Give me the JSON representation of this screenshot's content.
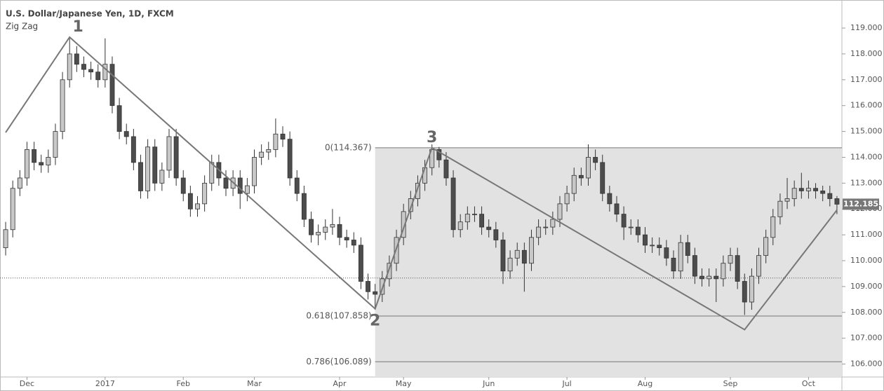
{
  "chart_data": {
    "type": "candlestick",
    "title": "U.S. Dollar/Japanese Yen, 1D, FXCM",
    "subtitle": "Zig Zag",
    "categories": [
      null,
      null,
      null,
      "Dec",
      null,
      null,
      null,
      null,
      null,
      null,
      null,
      null,
      null,
      null,
      "2017",
      null,
      null,
      null,
      null,
      null,
      null,
      null,
      null,
      null,
      null,
      "Feb",
      null,
      null,
      null,
      null,
      null,
      null,
      null,
      null,
      null,
      "Mar",
      null,
      null,
      null,
      null,
      null,
      null,
      null,
      null,
      null,
      null,
      null,
      "Apr",
      null,
      null,
      null,
      null,
      null,
      null,
      null,
      null,
      "May",
      null,
      null,
      null,
      null,
      null,
      null,
      null,
      null,
      null,
      null,
      null,
      "Jun",
      null,
      null,
      null,
      null,
      null,
      null,
      null,
      null,
      null,
      null,
      "Jul",
      null,
      null,
      null,
      null,
      null,
      null,
      null,
      null,
      null,
      null,
      "Aug",
      null,
      null,
      null,
      null,
      null,
      null,
      null,
      null,
      null,
      null,
      null,
      "Sep",
      null,
      null,
      null,
      null,
      null,
      null,
      null,
      null,
      null,
      null,
      "Oct",
      null,
      null,
      null,
      null
    ],
    "open": [
      110.5,
      111.2,
      112.8,
      113.2,
      114.3,
      113.8,
      113.7,
      114.0,
      115.0,
      117.0,
      118.0,
      117.6,
      117.4,
      117.3,
      117.0,
      117.6,
      116.0,
      115.0,
      114.8,
      113.8,
      112.7,
      114.4,
      113.0,
      113.5,
      114.8,
      113.2,
      112.6,
      112.0,
      112.2,
      113.0,
      113.8,
      113.2,
      112.8,
      113.2,
      112.6,
      112.9,
      114.0,
      114.2,
      114.3,
      114.9,
      114.7,
      113.2,
      112.6,
      111.6,
      111.0,
      111.1,
      111.3,
      111.4,
      110.9,
      110.8,
      110.6,
      109.2,
      108.8,
      108.7,
      109.3,
      109.9,
      110.9,
      111.9,
      112.4,
      113.0,
      113.6,
      114.3,
      113.9,
      113.2,
      111.2,
      111.5,
      111.8,
      111.8,
      111.3,
      111.2,
      110.8,
      109.6,
      110.1,
      110.4,
      109.9,
      110.9,
      111.3,
      111.3,
      111.6,
      112.2,
      112.6,
      113.3,
      113.2,
      114.0,
      113.8,
      112.6,
      112.2,
      111.8,
      111.3,
      111.3,
      111.0,
      110.6,
      110.6,
      110.5,
      110.1,
      109.6,
      110.7,
      110.2,
      109.4,
      109.3,
      109.4,
      109.3,
      109.9,
      110.2,
      109.2,
      108.4,
      109.4,
      110.2,
      110.9,
      111.7,
      112.3,
      112.4,
      112.8,
      112.7,
      112.8,
      112.7,
      112.6,
      112.4
    ],
    "high": [
      111.5,
      113.1,
      113.5,
      114.6,
      114.6,
      114.1,
      114.3,
      115.3,
      117.3,
      118.6,
      118.3,
      117.9,
      117.7,
      117.6,
      118.6,
      117.9,
      116.3,
      115.3,
      115.1,
      114.1,
      114.7,
      114.7,
      113.8,
      115.1,
      115.1,
      113.5,
      112.9,
      112.5,
      113.3,
      114.1,
      114.1,
      113.5,
      113.5,
      113.5,
      113.2,
      114.3,
      114.5,
      114.6,
      115.5,
      115.2,
      115.0,
      113.5,
      112.9,
      111.9,
      111.4,
      111.6,
      112.0,
      111.7,
      111.2,
      111.1,
      110.9,
      109.5,
      109.1,
      109.6,
      110.2,
      111.2,
      112.2,
      112.7,
      113.3,
      113.9,
      114.5,
      114.4,
      114.2,
      113.5,
      111.8,
      112.1,
      112.1,
      112.1,
      111.6,
      111.5,
      111.1,
      110.4,
      110.7,
      110.7,
      111.2,
      111.6,
      111.6,
      111.9,
      112.5,
      112.9,
      113.6,
      113.6,
      114.5,
      114.3,
      114.1,
      112.9,
      112.5,
      112.1,
      111.6,
      111.6,
      111.3,
      110.9,
      110.9,
      110.8,
      110.4,
      111.0,
      111.0,
      110.5,
      109.7,
      109.7,
      109.7,
      110.2,
      110.5,
      110.5,
      109.5,
      109.7,
      110.5,
      111.2,
      112.0,
      112.6,
      113.2,
      113.1,
      113.4,
      113.1,
      113.0,
      112.9,
      112.9,
      112.5
    ],
    "low": [
      110.2,
      110.9,
      112.5,
      112.9,
      113.5,
      113.4,
      113.4,
      113.7,
      114.7,
      116.7,
      117.3,
      117.1,
      117.0,
      116.7,
      116.7,
      115.7,
      114.7,
      114.5,
      113.5,
      112.4,
      112.4,
      112.7,
      112.7,
      113.2,
      112.9,
      112.3,
      111.7,
      111.7,
      111.9,
      112.7,
      112.9,
      112.5,
      112.5,
      112.0,
      112.3,
      112.6,
      113.7,
      113.9,
      114.0,
      114.4,
      112.9,
      112.3,
      111.3,
      110.7,
      110.6,
      110.8,
      111.0,
      110.6,
      110.5,
      110.3,
      108.9,
      108.5,
      108.1,
      108.4,
      109.0,
      109.6,
      110.6,
      111.6,
      112.1,
      112.7,
      113.3,
      113.6,
      112.9,
      110.9,
      110.9,
      111.2,
      111.5,
      111.0,
      110.9,
      110.5,
      109.1,
      109.3,
      109.8,
      108.8,
      109.6,
      110.6,
      111.0,
      111.0,
      111.3,
      111.9,
      112.3,
      112.9,
      112.9,
      113.5,
      112.3,
      111.9,
      111.5,
      110.8,
      111.0,
      110.7,
      110.3,
      110.3,
      110.2,
      109.8,
      109.3,
      109.3,
      109.9,
      109.1,
      109.0,
      109.0,
      108.4,
      109.0,
      109.6,
      108.9,
      107.9,
      108.1,
      109.1,
      109.9,
      110.6,
      111.4,
      112.0,
      112.1,
      112.4,
      112.4,
      112.4,
      112.3,
      112.1,
      111.8
    ],
    "close": [
      111.2,
      112.8,
      113.2,
      114.3,
      113.8,
      113.7,
      114.0,
      115.0,
      117.0,
      118.0,
      117.6,
      117.4,
      117.3,
      117.0,
      117.6,
      116.0,
      115.0,
      114.8,
      113.8,
      112.7,
      114.4,
      113.0,
      113.5,
      114.8,
      113.2,
      112.6,
      112.0,
      112.2,
      113.0,
      113.8,
      113.2,
      112.8,
      113.2,
      112.6,
      112.9,
      114.0,
      114.2,
      114.3,
      114.9,
      114.7,
      113.2,
      112.6,
      111.6,
      111.0,
      111.1,
      111.3,
      111.4,
      110.9,
      110.8,
      110.6,
      109.2,
      108.8,
      108.7,
      109.3,
      109.9,
      110.9,
      111.9,
      112.4,
      113.0,
      113.6,
      114.3,
      113.9,
      113.2,
      111.2,
      111.5,
      111.8,
      111.8,
      111.3,
      111.2,
      110.8,
      109.6,
      110.1,
      110.4,
      109.9,
      110.9,
      111.3,
      111.3,
      111.6,
      112.2,
      112.6,
      113.3,
      113.2,
      114.0,
      113.8,
      112.6,
      112.2,
      111.8,
      111.3,
      111.3,
      111.0,
      110.6,
      110.6,
      110.5,
      110.1,
      109.6,
      110.7,
      110.2,
      109.4,
      109.3,
      109.4,
      109.3,
      109.9,
      110.2,
      109.2,
      108.4,
      109.4,
      110.2,
      110.9,
      111.7,
      112.3,
      112.4,
      112.8,
      112.7,
      112.8,
      112.7,
      112.6,
      112.4,
      112.185
    ],
    "up_color": "#c8c8c8",
    "down_color": "#4d4d4d",
    "zigzag": {
      "color": "#777777",
      "points": [
        {
          "x": 0,
          "value": 114.96
        },
        {
          "x": 9,
          "value": 118.65,
          "label": "1"
        },
        {
          "x": 52,
          "value": 108.14,
          "label": "2"
        },
        {
          "x": 60,
          "value": 114.367,
          "label": "3"
        },
        {
          "x": 104,
          "value": 107.33
        },
        {
          "x": 117,
          "value": 111.96
        }
      ]
    },
    "fib_levels": {
      "values": [
        114.367,
        107.858,
        106.089
      ],
      "value_labels": [
        "0(114.367)",
        "0.618(107.858)",
        "0.786(106.089)"
      ],
      "start": 52
    },
    "reference_line": 109.33,
    "ylim": [
      105.5,
      119.95
    ],
    "yticks": [
      {
        "value": 106,
        "label": "106.000"
      },
      {
        "value": 107,
        "label": "107.000"
      },
      {
        "value": 108,
        "label": "108.000"
      },
      {
        "value": 109,
        "label": "109.000"
      },
      {
        "value": 110,
        "label": "110.000"
      },
      {
        "value": 111,
        "label": "111.000"
      },
      {
        "value": 112,
        "label": "112.000"
      },
      {
        "value": 113,
        "label": "113.000"
      },
      {
        "value": 114,
        "label": "114.000"
      },
      {
        "value": 115,
        "label": "115.000"
      },
      {
        "value": 116,
        "label": "116.000"
      },
      {
        "value": 117,
        "label": "117.000"
      },
      {
        "value": 118,
        "label": "118.000"
      },
      {
        "value": 119,
        "label": "119.000"
      }
    ]
  }
}
